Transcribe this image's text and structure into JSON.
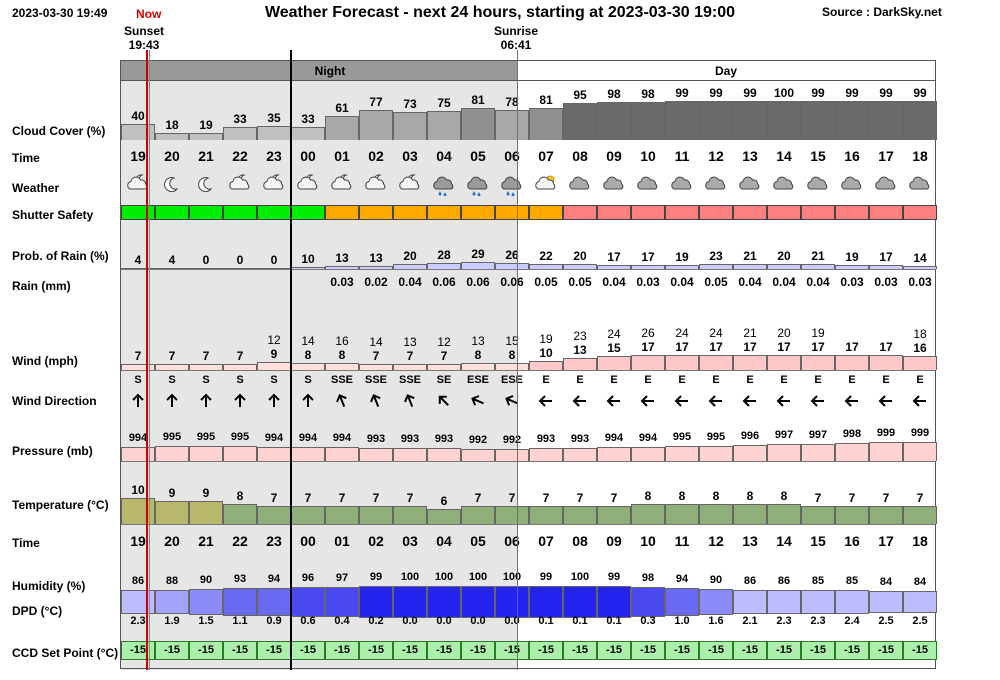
{
  "header": {
    "date": "2023-03-30 19:49",
    "title": "Weather Forecast - next 24 hours, starting at 2023-03-30 19:00",
    "source": "Source : DarkSky.net",
    "now_label": "Now",
    "sunset_label": "Sunset",
    "sunset_time": "19:43",
    "sunrise_label": "Sunrise",
    "sunrise_time": "06:41",
    "night_label": "Night",
    "day_label": "Day"
  },
  "row_labels": {
    "cloud": "Cloud Cover (%)",
    "time": "Time",
    "weather": "Weather",
    "shutter": "Shutter Safety",
    "rain_prob": "Prob. of Rain (%)",
    "rain_mm": "Rain (mm)",
    "wind": "Wind (mph)",
    "wind_dir": "Wind Direction",
    "pressure": "Pressure (mb)",
    "temperature": "Temperature (°C)",
    "time2": "Time",
    "humidity": "Humidity (%)",
    "dpd": "DPD (°C)",
    "ccd": "CCD Set Point (°C)"
  },
  "colors": {
    "night_bg": "#e6e6e6",
    "night_header": "#999999",
    "shutter_safe": "#00ee00",
    "shutter_marginal": "#ffaa00",
    "shutter_unsafe": "#ff8080",
    "now_line": "#cc0000",
    "sunrise_line": "#339933"
  },
  "hours": [
    "19",
    "20",
    "21",
    "22",
    "23",
    "00",
    "01",
    "02",
    "03",
    "04",
    "05",
    "06",
    "07",
    "08",
    "09",
    "10",
    "11",
    "12",
    "13",
    "14",
    "15",
    "16",
    "17",
    "18"
  ],
  "cloud_cover": [
    40,
    18,
    19,
    33,
    35,
    33,
    61,
    77,
    73,
    75,
    81,
    78,
    81,
    95,
    98,
    98,
    99,
    99,
    99,
    100,
    99,
    99,
    99,
    99
  ],
  "weather_icons": [
    "partly-cloudy-night",
    "clear-night",
    "clear-night",
    "partly-cloudy-night",
    "partly-cloudy-night",
    "partly-cloudy-night",
    "partly-cloudy-night",
    "partly-cloudy-night",
    "partly-cloudy-night",
    "rain",
    "rain",
    "rain",
    "partly-cloudy-day",
    "cloudy",
    "cloudy",
    "cloudy",
    "cloudy",
    "cloudy",
    "cloudy",
    "cloudy",
    "cloudy",
    "cloudy",
    "cloudy",
    "cloudy"
  ],
  "shutter": [
    "safe",
    "safe",
    "safe",
    "safe",
    "safe",
    "safe",
    "marginal",
    "marginal",
    "marginal",
    "marginal",
    "marginal",
    "marginal",
    "marginal",
    "unsafe",
    "unsafe",
    "unsafe",
    "unsafe",
    "unsafe",
    "unsafe",
    "unsafe",
    "unsafe",
    "unsafe",
    "unsafe",
    "unsafe"
  ],
  "rain_prob": [
    4,
    4,
    0,
    0,
    0,
    10,
    13,
    13,
    20,
    28,
    29,
    26,
    22,
    20,
    17,
    17,
    19,
    23,
    21,
    20,
    21,
    19,
    17,
    14
  ],
  "rain_mm": [
    "",
    "",
    "",
    "",
    "",
    "",
    "0.03",
    "0.02",
    "0.04",
    "0.06",
    "0.06",
    "0.06",
    "0.05",
    "0.05",
    "0.04",
    "0.03",
    "0.04",
    "0.05",
    "0.04",
    "0.04",
    "0.04",
    "0.03",
    "0.03",
    "0.03"
  ],
  "wind_gust": [
    "",
    "",
    "",
    "",
    "12",
    "14",
    "16",
    "14",
    "13",
    "12",
    "13",
    "15",
    "19",
    "23",
    "24",
    "26",
    "24",
    "24",
    "21",
    "20",
    "19",
    "",
    "",
    "18"
  ],
  "wind_speed": [
    7,
    7,
    7,
    7,
    9,
    8,
    8,
    7,
    7,
    7,
    8,
    8,
    10,
    13,
    15,
    17,
    17,
    17,
    17,
    17,
    17,
    17,
    17,
    16
  ],
  "wind_dir": [
    "S",
    "S",
    "S",
    "S",
    "S",
    "S",
    "SSE",
    "SSE",
    "SSE",
    "SE",
    "ESE",
    "ESE",
    "E",
    "E",
    "E",
    "E",
    "E",
    "E",
    "E",
    "E",
    "E",
    "E",
    "E",
    "E"
  ],
  "pressure": [
    994,
    995,
    995,
    995,
    994,
    994,
    994,
    993,
    993,
    993,
    992,
    992,
    993,
    993,
    994,
    994,
    995,
    995,
    996,
    997,
    997,
    998,
    999,
    999
  ],
  "temperature": [
    10,
    9,
    9,
    8,
    7,
    7,
    7,
    7,
    7,
    6,
    7,
    7,
    7,
    7,
    7,
    8,
    8,
    8,
    8,
    8,
    7,
    7,
    7,
    7
  ],
  "humidity": [
    86,
    88,
    90,
    93,
    94,
    96,
    97,
    99,
    100,
    100,
    100,
    100,
    99,
    100,
    99,
    98,
    94,
    90,
    86,
    86,
    85,
    85,
    84,
    84
  ],
  "dpd": [
    "2.3",
    "1.9",
    "1.5",
    "1.1",
    "0.9",
    "0.6",
    "0.4",
    "0.2",
    "0.0",
    "0.0",
    "0.0",
    "0.0",
    "0.1",
    "0.1",
    "0.1",
    "0.3",
    "1.0",
    "1.6",
    "2.1",
    "2.3",
    "2.3",
    "2.4",
    "2.5",
    "2.5"
  ],
  "ccd": [
    "-15",
    "-15",
    "-15",
    "-15",
    "-15",
    "-15",
    "-15",
    "-15",
    "-15",
    "-15",
    "-15",
    "-15",
    "-15",
    "-15",
    "-15",
    "-15",
    "-15",
    "-15",
    "-15",
    "-15",
    "-15",
    "-15",
    "-15",
    "-15"
  ]
}
